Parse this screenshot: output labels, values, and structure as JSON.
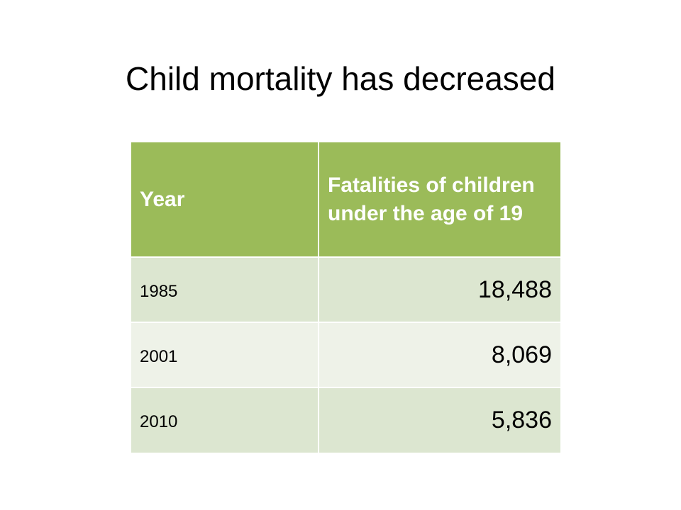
{
  "slide": {
    "title": "Child mortality has decreased"
  },
  "table": {
    "headers": {
      "year": "Year",
      "fatalities": "Fatalities of children under the age of 19"
    },
    "rows": [
      {
        "year": "1985",
        "fatalities": "18,488"
      },
      {
        "year": "2001",
        "fatalities": "8,069"
      },
      {
        "year": "2010",
        "fatalities": "5,836"
      }
    ]
  },
  "colors": {
    "header_fill": "#9bbb59",
    "row_odd_fill": "#dce6d0",
    "row_even_fill": "#eef2e8",
    "header_text": "#ffffff"
  }
}
